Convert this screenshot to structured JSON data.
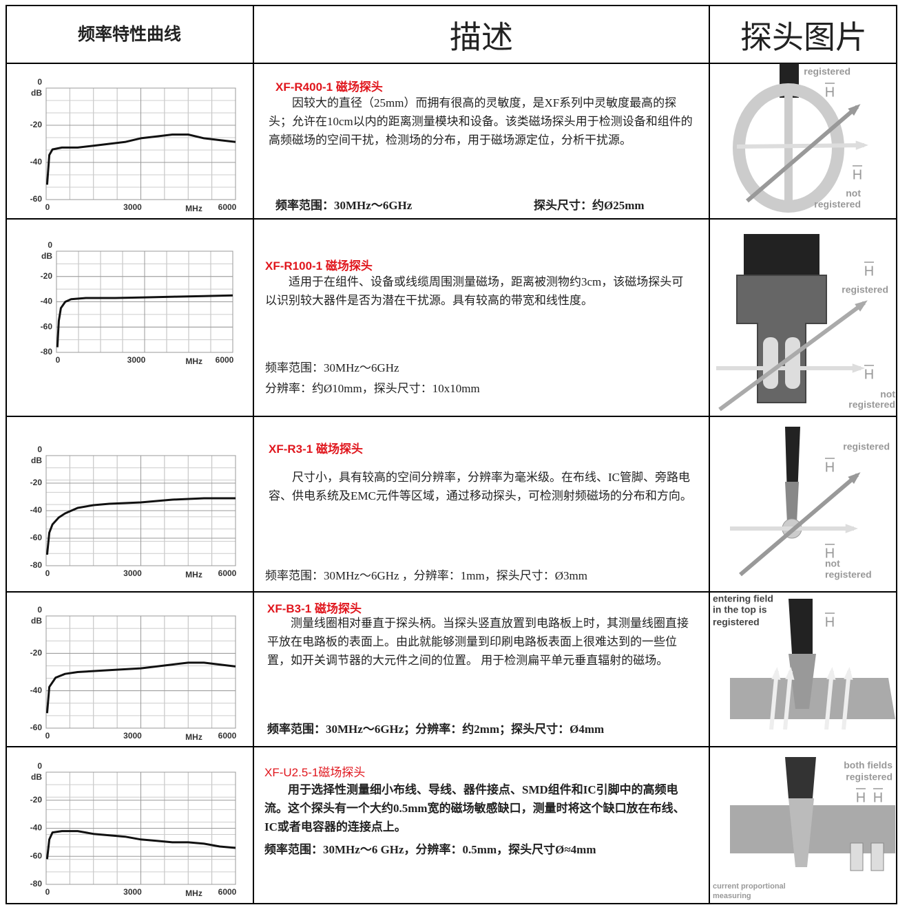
{
  "header": [
    "频率特性曲线",
    "描述",
    "探头图片"
  ],
  "rows": [
    {
      "chart": {
        "ylabel": "dB",
        "xlabel": "MHz",
        "ylim": [
          -60,
          0
        ],
        "yticks": [
          0,
          -20,
          -40,
          -60
        ],
        "xlim": [
          0,
          6000
        ],
        "xticks": [
          0,
          3000,
          6000
        ],
        "x": [
          30,
          100,
          200,
          500,
          1000,
          1500,
          2000,
          2500,
          3000,
          3500,
          4000,
          4500,
          5000,
          5500,
          6000
        ],
        "values": [
          -52,
          -36,
          -33,
          -32,
          -32,
          -31,
          -30,
          -29,
          -27,
          -26,
          -25,
          -25,
          -27,
          -28,
          -29
        ]
      },
      "title": "XF-R400-1 磁场探头",
      "text": "因较大的直径（25mm）而拥有很高的灵敏度，是XF系列中灵敏度最高的探头；允许在10cm以内的距离测量模块和设备。该类磁场探头用于检测设备和组件的高频磁场的空间干扰，检测场的分布，用于磁场源定位，分析干扰源。",
      "specs": [
        "频率范围：30MHz～6GHz",
        "探头尺寸：约Ø25mm"
      ],
      "picture": [
        "registered",
        "H",
        "H",
        "not",
        "registered"
      ]
    },
    {
      "chart": {
        "ylabel": "dB",
        "xlabel": "MHz",
        "ylim": [
          -80,
          0
        ],
        "yticks": [
          0,
          -20,
          -40,
          -60,
          -80
        ],
        "xlim": [
          0,
          6000
        ],
        "xticks": [
          0,
          3000,
          6000
        ],
        "x": [
          30,
          80,
          150,
          300,
          500,
          1000,
          2000,
          3000,
          4000,
          5000,
          6000
        ],
        "values": [
          -76,
          -55,
          -45,
          -40,
          -38,
          -37,
          -37,
          -36.5,
          -36,
          -35.5,
          -35
        ]
      },
      "title": "XF-R100-1 磁场探头",
      "text": "适用于在组件、设备或线缆周围测量磁场，距离被测物约3cm，该磁场探头可以识别较大器件是否为潜在干扰源。具有较高的带宽和线性度。",
      "specs": [
        "频率范围：30MHz～6GHz",
        "分辨率：约Ø10mm，探头尺寸：10x10mm"
      ],
      "picture": [
        "H",
        "registered",
        "H",
        "not",
        "registered"
      ]
    },
    {
      "chart": {
        "ylabel": "dB",
        "xlabel": "MHz",
        "ylim": [
          -80,
          0
        ],
        "yticks": [
          0,
          -20,
          -40,
          -60,
          -80
        ],
        "xlim": [
          0,
          6000
        ],
        "xticks": [
          0,
          3000,
          6000
        ],
        "x": [
          30,
          100,
          200,
          400,
          600,
          1000,
          1500,
          2000,
          3000,
          4000,
          5000,
          6000
        ],
        "values": [
          -72,
          -56,
          -50,
          -45,
          -42,
          -38,
          -36,
          -35,
          -34,
          -32,
          -31,
          -31
        ]
      },
      "title": "XF-R3-1 磁场探头",
      "text": "尺寸小，具有较高的空间分辨率，分辨率为毫米级。在布线、IC管脚、旁路电容、供电系统及EMC元件等区域，通过移动探头，可检测射频磁场的分布和方向。",
      "specs": [
        "频率范围：30MHz～6GHz ，分辨率：1mm，探头尺寸：Ø3mm"
      ],
      "picture": [
        "registered",
        "H",
        "H",
        "not",
        "registered"
      ]
    },
    {
      "chart": {
        "ylabel": "dB",
        "xlabel": "MHz",
        "ylim": [
          -60,
          0
        ],
        "yticks": [
          0,
          -20,
          -40,
          -60
        ],
        "xlim": [
          0,
          6000
        ],
        "xticks": [
          0,
          3000,
          6000
        ],
        "x": [
          30,
          100,
          300,
          600,
          1000,
          2000,
          3000,
          3500,
          4000,
          4500,
          5000,
          5500,
          6000
        ],
        "values": [
          -52,
          -38,
          -33,
          -31,
          -30,
          -29,
          -28,
          -27,
          -26,
          -25,
          -25,
          -26,
          -27
        ]
      },
      "title": "XF-B3-1 磁场探头",
      "text": "测量线圈相对垂直于探头柄。当探头竖直放置到电路板上时，其测量线圈直接平放在电路板的表面上。由此就能够测量到印刷电路板表面上很难达到的一些位置，如开关调节器的大元件之间的位置。 用于检测扁平单元垂直辐射的磁场。",
      "specs": [
        "频率范围：30MHz～6GHz；分辨率：约2mm；探头尺寸：Ø4mm"
      ],
      "picture": [
        "entering field",
        "in the top is",
        "registered",
        "H"
      ]
    },
    {
      "chart": {
        "ylabel": "dB",
        "xlabel": "MHz",
        "ylim": [
          -80,
          0
        ],
        "yticks": [
          0,
          -20,
          -40,
          -60,
          -80
        ],
        "xlim": [
          0,
          6000
        ],
        "xticks": [
          0,
          3000,
          6000
        ],
        "x": [
          30,
          100,
          200,
          500,
          1000,
          1500,
          2000,
          2500,
          3000,
          3500,
          4000,
          4500,
          5000,
          5500,
          6000
        ],
        "values": [
          -62,
          -48,
          -43,
          -42,
          -42,
          -44,
          -45,
          -46,
          -48,
          -49,
          -50,
          -50,
          -51,
          -53,
          -54
        ]
      },
      "title": "XF-U2.5-1磁场探头",
      "text": "用于选择性测量细小布线、导线、器件接点、SMD组件和IC引脚中的高频电流。这个探头有一个大约0.5mm宽的磁场敏感缺口，测量时将这个缺口放在布线、IC或者电容器的连接点上。",
      "specs": [
        "频率范围：30MHz～6 GHz，分辨率：0.5mm，探头尺寸Ø≈4mm"
      ],
      "picture": [
        "both fields",
        "registered",
        "H",
        "H",
        "current proportional",
        "measuring"
      ]
    }
  ]
}
